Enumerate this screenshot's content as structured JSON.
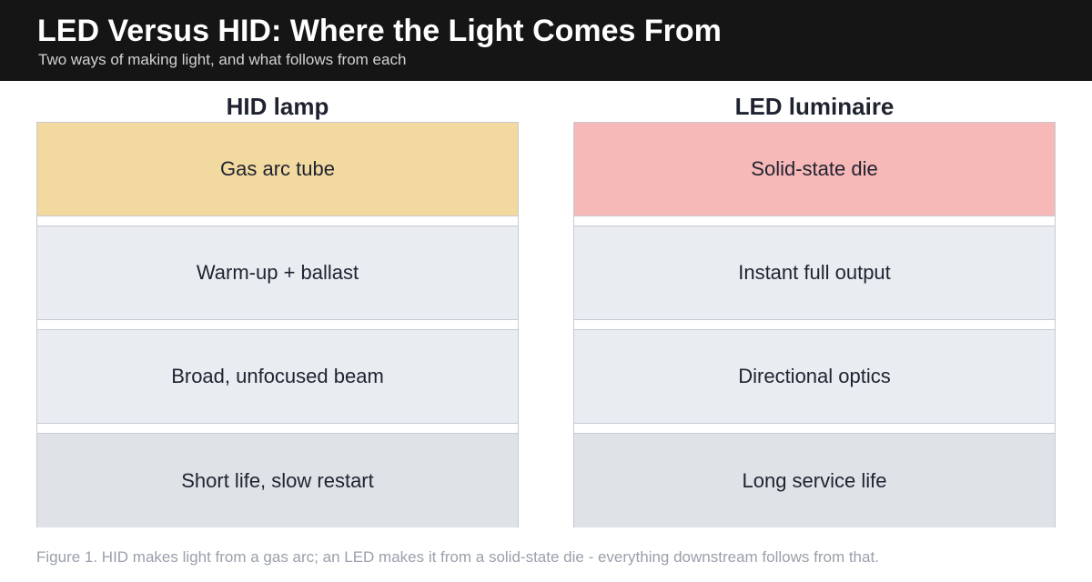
{
  "header": {
    "title": "LED Versus HID: Where the Light Comes From",
    "subtitle": "Two ways of making light, and what follows from each"
  },
  "columns": [
    {
      "heading": "HID lamp",
      "items": [
        {
          "label": "Gas arc tube",
          "color": "#f2d9a0"
        },
        {
          "label": "Warm-up + ballast",
          "color": "#e9ecf1"
        },
        {
          "label": "Broad, unfocused beam",
          "color": "#e9ecf1"
        },
        {
          "label": "Short life, slow restart",
          "color": "#dfe2e7"
        }
      ]
    },
    {
      "heading": "LED luminaire",
      "items": [
        {
          "label": "Solid-state die",
          "color": "#f7b8b8"
        },
        {
          "label": "Instant full output",
          "color": "#e9ecf1"
        },
        {
          "label": "Directional optics",
          "color": "#e9ecf1"
        },
        {
          "label": "Long service life",
          "color": "#dfe2e7"
        }
      ]
    }
  ],
  "caption": "Figure 1. HID makes light from a gas arc; an LED makes it from a solid-state die - everything downstream follows from that."
}
